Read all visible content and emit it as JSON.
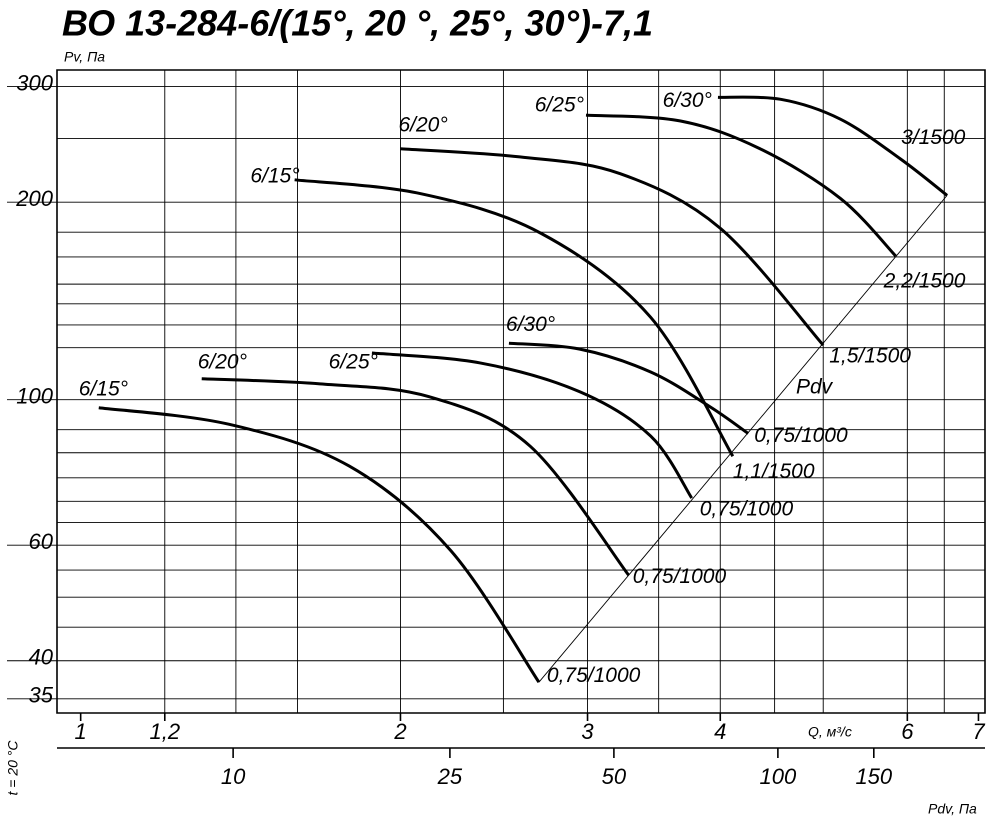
{
  "chart_data": {
    "type": "line",
    "title": "ВО 13-284-6/(15°, 20 °, 25°, 30°)-7,1",
    "y_label": "Pv, Па",
    "x_label": "Q, м³/с",
    "x2_label": "Pdv, Па",
    "side_label": "t = 20 °C",
    "pdv_label": "Pdv",
    "log_x": true,
    "log_y": true,
    "xlim": [
      0.95,
      7.1
    ],
    "ylim": [
      33.3,
      318
    ],
    "x2lim": [
      4.75,
      240
    ],
    "yticks": [
      300,
      200,
      100,
      60,
      40,
      35
    ],
    "xticks": [
      1,
      {
        "value": 1.2,
        "label": "1,2"
      },
      2,
      3,
      4,
      6,
      7
    ],
    "x2ticks": [
      10,
      25,
      50,
      100,
      150
    ],
    "ygrid": [
      250,
      180,
      165,
      150,
      140,
      130,
      120,
      90,
      83,
      76,
      70,
      65,
      55,
      50,
      45
    ],
    "xgrid": [
      1.2,
      1.4,
      1.6,
      2,
      2.5,
      3,
      3.5,
      4,
      4.5,
      5,
      6,
      6.5
    ],
    "color": "#000000",
    "series": [
      {
        "name": "6/15°",
        "end_label": "0,75/1000",
        "x": [
          1.04,
          1.38,
          1.79,
          2.23,
          2.7
        ],
        "values": [
          97.2,
          91.7,
          79.2,
          58.9,
          37.1
        ]
      },
      {
        "name": "6/20°",
        "end_label": "0,75/1000",
        "x": [
          1.3,
          1.68,
          2.13,
          2.65,
          3.28
        ],
        "values": [
          107.6,
          105.7,
          101.0,
          84.9,
          54.0
        ]
      },
      {
        "name": "6/25°",
        "end_label": "0,75/1000",
        "x": [
          1.88,
          2.38,
          2.95,
          3.44,
          3.76
        ],
        "values": [
          117.8,
          113.7,
          102.8,
          88.0,
          70.8
        ]
      },
      {
        "name": "6/30°",
        "end_label": "0,75/1000",
        "x": [
          2.53,
          2.95,
          3.44,
          3.91,
          4.25
        ],
        "values": [
          121.9,
          119.4,
          110.2,
          97.6,
          88.8
        ]
      },
      {
        "name": "6/15°",
        "end_label": "1,1/1500",
        "x": [
          1.59,
          2.09,
          2.71,
          3.44,
          4.11
        ],
        "values": [
          216.3,
          206.0,
          179.4,
          133.5,
          82.0
        ]
      },
      {
        "name": "6/20°",
        "end_label": "1,5/1500",
        "x": [
          2.0,
          2.59,
          3.22,
          4.0,
          5.0
        ],
        "values": [
          241.2,
          234.4,
          221.0,
          182.5,
          121.1
        ]
      },
      {
        "name": "6/25°",
        "end_label": "2,2/1500",
        "x": [
          2.99,
          3.67,
          4.36,
          5.19,
          5.85
        ],
        "values": [
          271.4,
          265.9,
          241.2,
          202.6,
          165.6
        ]
      },
      {
        "name": "6/30°",
        "end_label": "3/1500",
        "x": [
          3.98,
          4.56,
          5.19,
          5.91,
          6.54
        ],
        "values": [
          288.9,
          286.9,
          267.6,
          232.8,
          204.8
        ]
      }
    ]
  }
}
